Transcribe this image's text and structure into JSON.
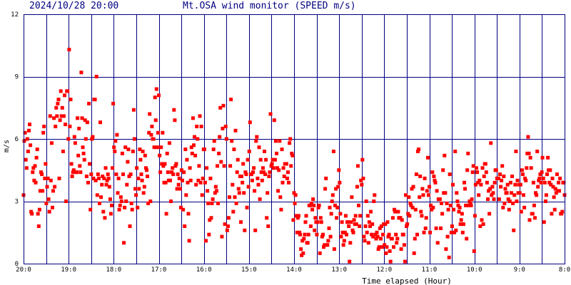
{
  "header": {
    "timestamp": "2024/10/28 20:00",
    "title": "Mt.OSA wind monitor (SPEED m/s)"
  },
  "chart_data": {
    "type": "scatter",
    "title": "Mt.OSA wind monitor (SPEED m/s)",
    "ylabel": "m/s",
    "xlabel": "Time elapsed (Hour)",
    "ylim": [
      0,
      12
    ],
    "yticks": [
      "0",
      "3",
      "6",
      "9",
      "12"
    ],
    "xtick_labels": [
      "20:0",
      "19:0",
      "18:0",
      "17:0",
      "16:0",
      "15:0",
      "14:0",
      "13:0",
      "12:0",
      "11:0",
      "10:0",
      "9:0",
      "8:0"
    ],
    "x_hours_elapsed_range": [
      0,
      12
    ],
    "grid": true,
    "colors": {
      "points": "#ff0000",
      "grid": "#000080",
      "frame": "#000080",
      "text": "#000080"
    },
    "series": [
      {
        "values": [
          3.3,
          5.9,
          6.3,
          5.0,
          4.6,
          6.0,
          5.4,
          6.4,
          6.7,
          5.7,
          2.5,
          2.4,
          4.4,
          4.6,
          4.0,
          4.7,
          3.9,
          5.1,
          5.5,
          2.4,
          1.8,
          2.6,
          3.5,
          4.4,
          4.3,
          3.5,
          6.3,
          6.6,
          4.1,
          4.8,
          2.9,
          3.7,
          4.1,
          3.1,
          2.5,
          7.1,
          4.0,
          5.8,
          2.7,
          3.5,
          7.0,
          3.7,
          6.6,
          7.5,
          7.1,
          7.7,
          7.9,
          4.1,
          6.9,
          8.3,
          7.1,
          7.5,
          5.4,
          7.1,
          8.1,
          6.7,
          3.0,
          8.3,
          8.3,
          6.0,
          10.3,
          6.6,
          7.9,
          4.8,
          4.2,
          4.4,
          4.5,
          6.1,
          5.8,
          4.4,
          4.4,
          7.0,
          5.2,
          6.5,
          4.7,
          4.4,
          9.2,
          7.0,
          5.6,
          5.3,
          5.0,
          6.9,
          6.0,
          4.2,
          6.8,
          3.9,
          7.7,
          4.8,
          2.6,
          4.3,
          6.0,
          6.1,
          4.1,
          7.9,
          7.9,
          4.0,
          9.0,
          3.3,
          4.3,
          4.1,
          2.9,
          6.8,
          3.2,
          3.8,
          4.2,
          2.5,
          4.1,
          2.2,
          4.6,
          3.8,
          4.0,
          4.3,
          4.1,
          3.7,
          3.1,
          2.4,
          2.8,
          4.6,
          7.7,
          5.6,
          5.4,
          5.9,
          4.3,
          6.2,
          3.4,
          4.1,
          2.6,
          2.8,
          3.2,
          3.0,
          5.3,
          4.3,
          1.0,
          2.7,
          5.6,
          3.0,
          3.8,
          4.9,
          5.5,
          4.2,
          1.8,
          4.3,
          2.9,
          2.6,
          5.4,
          7.4,
          6.0,
          3.6,
          3.3,
          4.6,
          2.7,
          4.1,
          3.6,
          5.5,
          5.0,
          4.3,
          4.0,
          5.4,
          3.4,
          3.7,
          5.2,
          4.6,
          4.5,
          4.2,
          2.9,
          6.3,
          7.2,
          3.0,
          6.2,
          6.6,
          6.0,
          6.0,
          5.6,
          8.0,
          6.9,
          8.4,
          5.6,
          6.3,
          8.1,
          5.2,
          4.4,
          5.6,
          4.8,
          6.3,
          4.7,
          3.9,
          4.8,
          3.9,
          2.4,
          5.3,
          4.4,
          4.0,
          5.8,
          4.0,
          3.0,
          4.4,
          4.6,
          4.3,
          7.4,
          6.9,
          4.7,
          4.8,
          3.6,
          4.3,
          3.8,
          4.1,
          3.6,
          2.7,
          4.5,
          4.0,
          2.6,
          4.4,
          1.8,
          5.5,
          3.3,
          5.0,
          3.9,
          2.4,
          1.1,
          4.6,
          4.0,
          5.6,
          5.3,
          7.0,
          5.7,
          6.1,
          5.2,
          3.8,
          6.6,
          6.0,
          4.0,
          4.7,
          7.1,
          3.9,
          6.6,
          3.3,
          4.1,
          5.5,
          5.5,
          3.9,
          1.1,
          4.6,
          3.5,
          2.9,
          1.4,
          2.1,
          4.1,
          2.2,
          2.9,
          3.1,
          5.5,
          5.9,
          3.4,
          3.7,
          3.5,
          4.7,
          2.9,
          5.3,
          6.1,
          7.5,
          4.9,
          1.3,
          6.5,
          7.6,
          4.7,
          1.9,
          6.6,
          6.0,
          1.6,
          1.8,
          2.2,
          3.2,
          4.7,
          7.9,
          5.9,
          3.8,
          2.5,
          5.5,
          3.2,
          6.4,
          2.9,
          4.4,
          5.0,
          3.6,
          3.4,
          4.2,
          2.0,
          4.2,
          3.9,
          4.8,
          3.4,
          1.6,
          4.4,
          4.3,
          2.7,
          5.0,
          3.7,
          5.4,
          6.8,
          4.3,
          4.3,
          4.0,
          4.4,
          4.6,
          3.5,
          1.6,
          5.9,
          6.1,
          4.1,
          3.8,
          5.6,
          3.1,
          5.0,
          4.4,
          4.0,
          4.6,
          4.4,
          5.4,
          4.3,
          5.0,
          2.2,
          3.4,
          1.8,
          4.2,
          4.4,
          7.2,
          4.7,
          4.8,
          5.0,
          4.6,
          6.9,
          5.0,
          5.9,
          5.3,
          4.6,
          3.5,
          4.5,
          5.9,
          3.2,
          2.6,
          5.5,
          3.9,
          4.6,
          4.2,
          4.8,
          4.8,
          4.8,
          4.1,
          4.4,
          3.9,
          5.8,
          6.0,
          4.7,
          5.3,
          5.2,
          2.1,
          3.4,
          2.9,
          3.3,
          2.3,
          1.5,
          2.2,
          2.3,
          1.5,
          1.4,
          0.7,
          0.4,
          1.1,
          0.5,
          1.2,
          1.4,
          2.0,
          2.3,
          1.0,
          1.0,
          1.4,
          2.8,
          2.8,
          1.8,
          2.9,
          2.6,
          3.1,
          2.8,
          1.6,
          2.2,
          2.0,
          1.4,
          2.0,
          2.7,
          2.8,
          0.5,
          2.2,
          2.0,
          1.3,
          1.4,
          0.8,
          0.9,
          3.6,
          4.1,
          0.9,
          0.9,
          1.1,
          1.7,
          2.7,
          1.3,
          2.4,
          3.0,
          3.3,
          5.4,
          0.7,
          2.8,
          3.6,
          2.2,
          2.7,
          3.7,
          4.5,
          3.9,
          2.4,
          1.3,
          2.0,
          1.5,
          0.9,
          1.1,
          1.5,
          2.3,
          1.4,
          2.0,
          2.0,
          1.8,
          0.1,
          1.0,
          2.0,
          3.2,
          1.6,
          1.5,
          2.1,
          1.9,
          2.3,
          1.9,
          3.7,
          4.7,
          2.8,
          1.8,
          2.3,
          4.0,
          3.8,
          5.0,
          4.1,
          1.3,
          1.1,
          1.8,
          3.0,
          1.5,
          2.3,
          1.0,
          2.0,
          1.8,
          2.5,
          1.4,
          1.9,
          1.3,
          3.0,
          3.3,
          1.4,
          1.2,
          1.5,
          1.3,
          0.7,
          0.8,
          1.7,
          1.2,
          1.8,
          0.8,
          1.4,
          1.9,
          0.9,
          1.9,
          0.5,
          0.8,
          2.0,
          1.3,
          1.4,
          0.6,
          0.1,
          1.2,
          1.2,
          2.2,
          0.8,
          2.6,
          2.5,
          1.4,
          1.0,
          1.2,
          2.5,
          2.2,
          2.2,
          2.2,
          0.7,
          2.1,
          1.4,
          1.4,
          0.9,
          0.1,
          3.3,
          1.8,
          1.9,
          2.4,
          3.2,
          2.3,
          2.9,
          2.8,
          3.6,
          2.7,
          3.7,
          0.5,
          1.2,
          2.6,
          4.3,
          1.4,
          5.4,
          5.5,
          3.2,
          4.2,
          2.5,
          2.3,
          3.6,
          3.3,
          1.5,
          4.1,
          1.7,
          2.2,
          3.5,
          5.1,
          3.3,
          3.7,
          1.5,
          2.8,
          2.6,
          4.4,
          2.7,
          4.2,
          4.0,
          3.9,
          1.7,
          3.5,
          1.0,
          3.1,
          3.1,
          3.1,
          1.7,
          2.9,
          2.4,
          4.5,
          3.4,
          5.2,
          3.4,
          0.7,
          2.9,
          1.3,
          2.6,
          0.3,
          4.3,
          2.8,
          1.5,
          1.8,
          3.8,
          2.6,
          1.5,
          5.4,
          1.6,
          3.4,
          3.0,
          2.8,
          2.5,
          2.7,
          1.9,
          2.1,
          2.4,
          1.5,
          1.9,
          3.9,
          3.6,
          2.8,
          1.2,
          4.5,
          5.3,
          2.8,
          3.0,
          2.9,
          2.8,
          3.1,
          4.4,
          4.7,
          0.6,
          2.3,
          3.8,
          4.6,
          4.4,
          3.9,
          3.3,
          4.0,
          1.8,
          3.8,
          2.1,
          4.6,
          1.9,
          4.2,
          4.8,
          4.8,
          4.4,
          3.9,
          3.1,
          3.5,
          2.4,
          3.6,
          5.8,
          3.3,
          3.7,
          3.4,
          3.1,
          3.9,
          4.5,
          4.5,
          4.1,
          4.1,
          4.1,
          3.1,
          4.3,
          3.7,
          4.0,
          4.7,
          2.7,
          4.2,
          2.9,
          3.6,
          3.4,
          3.4,
          3.8,
          3.1,
          2.6,
          3.0,
          3.9,
          3.4,
          4.2,
          2.9,
          1.6,
          3.3,
          3.8,
          5.4,
          3.0,
          4.0,
          3.4,
          3.8,
          3.4,
          3.8,
          2.5,
          4.5,
          4.3,
          3.3,
          2.7,
          4.1,
          4.0,
          4.6,
          5.3,
          6.1,
          5.3,
          2.1,
          5.1,
          4.6,
          2.4,
          2.4,
          3.9,
          2.8,
          2.2,
          3.4,
          3.3,
          5.4,
          3.7,
          4.0,
          4.1,
          4.3,
          3.9,
          4.4,
          5.1,
          4.1,
          2.0,
          3.9,
          3.0,
          3.3,
          4.3,
          5.1,
          4.5,
          3.9,
          4.5,
          3.8,
          2.4,
          4.1,
          3.7,
          3.2,
          2.6,
          3.6,
          3.4,
          4.3,
          3.5,
          3.9,
          3.5,
          4.1,
          2.4,
          2.4,
          2.5,
          3.9,
          3.9,
          3.3
        ]
      }
    ]
  }
}
